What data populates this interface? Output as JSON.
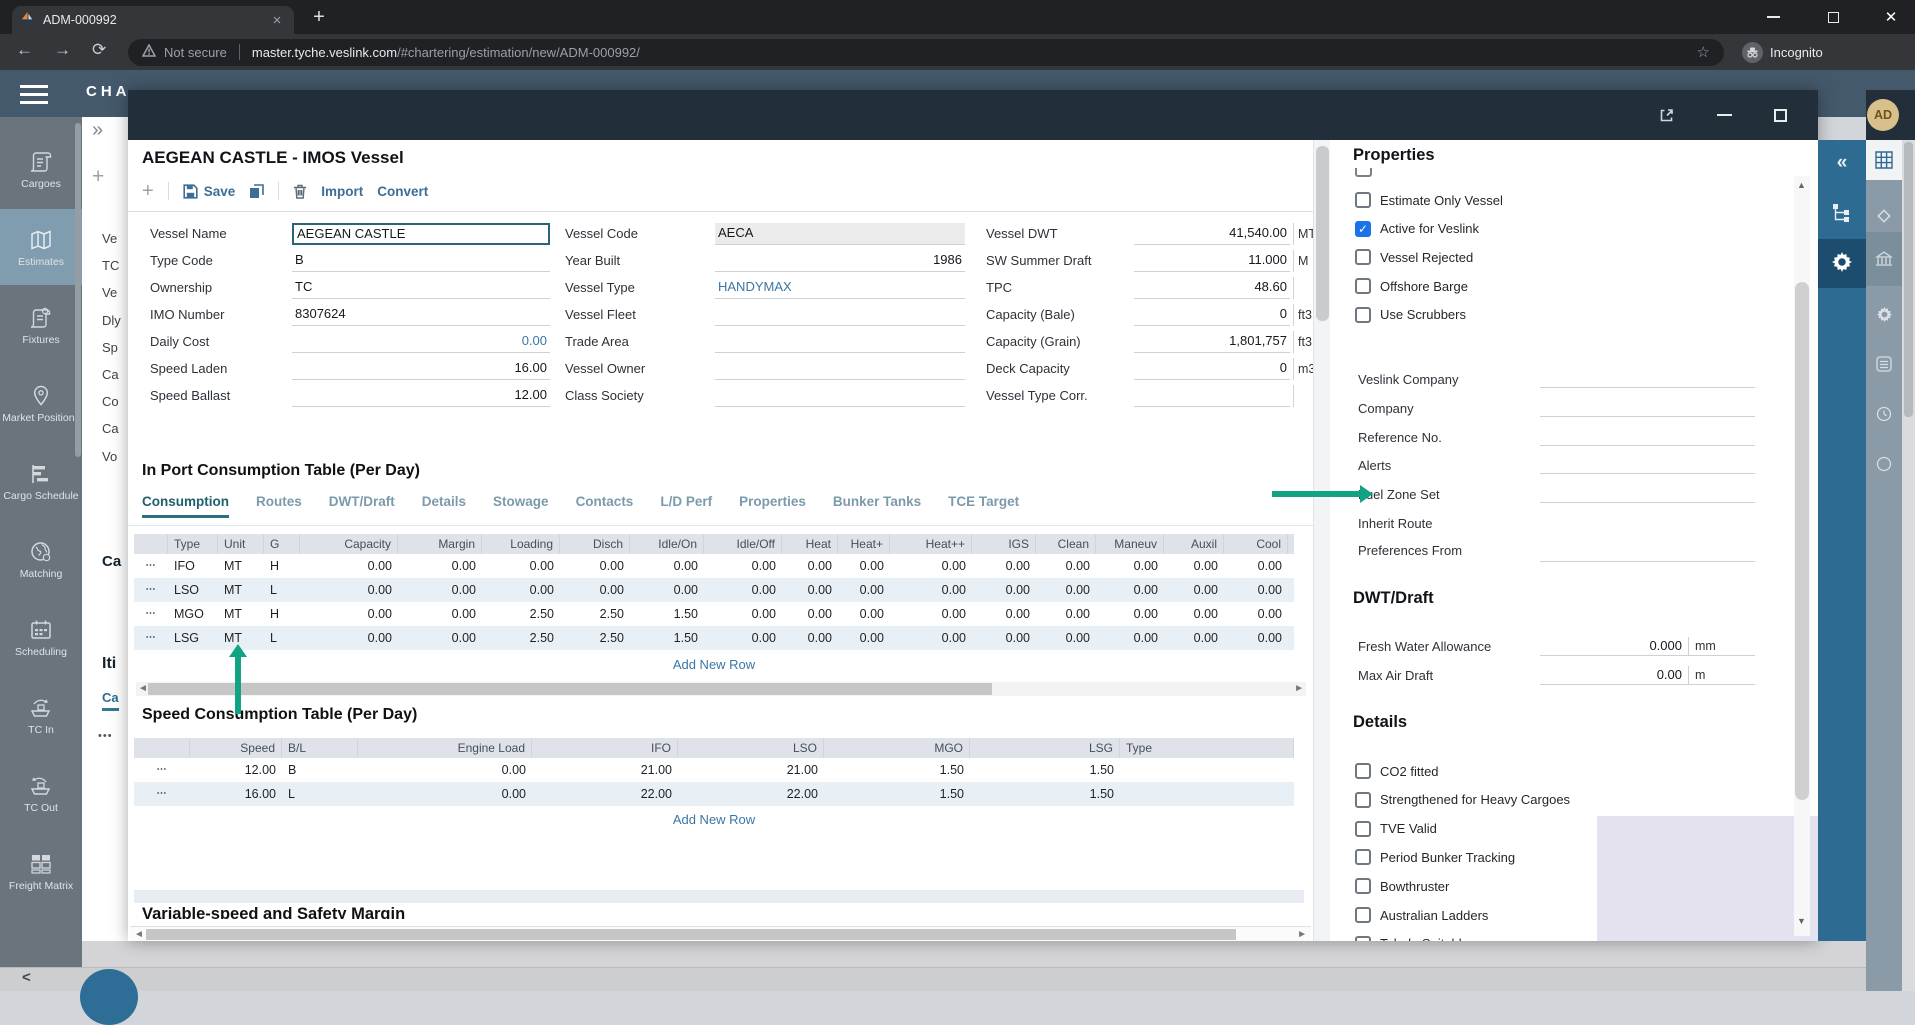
{
  "colors": {
    "accent_blue": "#2e6b93",
    "link_blue": "#3b76a4",
    "tab_active_teal": "#215f6f",
    "annotation_green": "#11a384",
    "checkbox_checked_blue": "#1a73e8",
    "modal_header": "#232e3b",
    "app_header": "#44596c",
    "sidebar_active": "#7f9dae"
  },
  "browser": {
    "tab_title": "ADM-000992",
    "not_secure": "Not secure",
    "url_host": "master.tyche.veslink.com",
    "url_path": "/#chartering/estimation/new/ADM-000992/",
    "incognito": "Incognito"
  },
  "app": {
    "header_title": "CHA",
    "avatar": "AD",
    "back_hint": "<"
  },
  "sidebar": {
    "items": [
      {
        "label": "Cargoes",
        "icon": "cargoes-scroll-icon",
        "active": false
      },
      {
        "label": "Estimates",
        "icon": "estimates-map-icon",
        "active": true
      },
      {
        "label": "Fixtures",
        "icon": "fixtures-scroll-icon",
        "active": false
      },
      {
        "label": "Market Positions",
        "icon": "market-pin-icon",
        "active": false
      },
      {
        "label": "Cargo Schedule",
        "icon": "cargo-schedule-gantt-icon",
        "active": false
      },
      {
        "label": "Matching",
        "icon": "matching-globe-icon",
        "active": false
      },
      {
        "label": "Scheduling",
        "icon": "scheduling-calendar-icon",
        "active": false
      },
      {
        "label": "TC In",
        "icon": "tc-in-ship-icon",
        "active": false
      },
      {
        "label": "TC Out",
        "icon": "tc-out-ship-icon",
        "active": false
      },
      {
        "label": "Freight Matrix",
        "icon": "freight-matrix-grid-icon",
        "active": false
      }
    ]
  },
  "background_page": {
    "clipped_labels": [
      "Ve",
      "TC",
      "Ve",
      "Dly",
      "Sp",
      "Ca",
      "Co",
      "Ca",
      "Vo"
    ],
    "heading_1": "Ca",
    "heading_2": "Iti",
    "heading_3": "Ca",
    "row_menu": "•••"
  },
  "modal": {
    "title": "AEGEAN CASTLE - IMOS Vessel",
    "toolbar": {
      "save": "Save",
      "import": "Import",
      "convert": "Convert"
    },
    "form": {
      "columns": [
        {
          "fields": [
            {
              "label": "Vessel Name",
              "value": "AEGEAN CASTLE",
              "kind": "boxed"
            },
            {
              "label": "Type Code",
              "value": "B"
            },
            {
              "label": "Ownership",
              "value": "TC"
            },
            {
              "label": "IMO Number",
              "value": "8307624"
            },
            {
              "label": "Daily Cost",
              "value": "0.00",
              "align": "right",
              "link": true
            },
            {
              "label": "Speed Laden",
              "value": "16.00",
              "align": "right"
            },
            {
              "label": "Speed Ballast",
              "value": "12.00",
              "align": "right"
            }
          ]
        },
        {
          "fields": [
            {
              "label": "Vessel Code",
              "value": "AECA",
              "kind": "readonly"
            },
            {
              "label": "Year Built",
              "value": "1986",
              "align": "right"
            },
            {
              "label": "Vessel Type",
              "value": "HANDYMAX",
              "link": true
            },
            {
              "label": "Vessel Fleet",
              "value": ""
            },
            {
              "label": "Trade Area",
              "value": ""
            },
            {
              "label": "Vessel Owner",
              "value": ""
            },
            {
              "label": "Class Society",
              "value": ""
            }
          ]
        },
        {
          "fields": [
            {
              "label": "Vessel DWT",
              "value": "41,540.00",
              "unit": "MT",
              "align": "right"
            },
            {
              "label": "SW Summer Draft",
              "value": "11.000",
              "unit": "M",
              "align": "right"
            },
            {
              "label": "TPC",
              "value": "48.60",
              "unit": "",
              "align": "right"
            },
            {
              "label": "Capacity (Bale)",
              "value": "0",
              "unit": "ft3",
              "align": "right"
            },
            {
              "label": "Capacity (Grain)",
              "value": "1,801,757",
              "unit": "ft3",
              "align": "right"
            },
            {
              "label": "Deck Capacity",
              "value": "0",
              "unit": "m3",
              "align": "right"
            },
            {
              "label": "Vessel Type Corr.",
              "value": "",
              "unit": "",
              "align": "right"
            }
          ]
        }
      ]
    },
    "inport": {
      "title": "In Port Consumption Table (Per Day)",
      "tabs": [
        {
          "label": "Consumption",
          "active": true
        },
        {
          "label": "Routes",
          "active": false
        },
        {
          "label": "DWT/Draft",
          "active": false
        },
        {
          "label": "Details",
          "active": false
        },
        {
          "label": "Stowage",
          "active": false
        },
        {
          "label": "Contacts",
          "active": false
        },
        {
          "label": "L/D Perf",
          "active": false
        },
        {
          "label": "Properties",
          "active": false
        },
        {
          "label": "Bunker Tanks",
          "active": false
        },
        {
          "label": "TCE Target",
          "active": false
        }
      ],
      "headers": [
        "Type",
        "Unit",
        "G",
        "Capacity",
        "Margin",
        "Loading",
        "Disch",
        "Idle/On",
        "Idle/Off",
        "Heat",
        "Heat+",
        "Heat++",
        "IGS",
        "Clean",
        "Maneuv",
        "Auxil",
        "Cool"
      ],
      "rows": [
        {
          "type": "IFO",
          "unit": "MT",
          "g": "H",
          "values": [
            "0.00",
            "0.00",
            "0.00",
            "0.00",
            "0.00",
            "0.00",
            "0.00",
            "0.00",
            "0.00",
            "0.00",
            "0.00",
            "0.00",
            "0.00",
            "0.00"
          ]
        },
        {
          "type": "LSO",
          "unit": "MT",
          "g": "L",
          "values": [
            "0.00",
            "0.00",
            "0.00",
            "0.00",
            "0.00",
            "0.00",
            "0.00",
            "0.00",
            "0.00",
            "0.00",
            "0.00",
            "0.00",
            "0.00",
            "0.00"
          ]
        },
        {
          "type": "MGO",
          "unit": "MT",
          "g": "H",
          "values": [
            "0.00",
            "0.00",
            "2.50",
            "2.50",
            "1.50",
            "0.00",
            "0.00",
            "0.00",
            "0.00",
            "0.00",
            "0.00",
            "0.00",
            "0.00",
            "0.00"
          ]
        },
        {
          "type": "LSG",
          "unit": "MT",
          "g": "L",
          "values": [
            "0.00",
            "0.00",
            "2.50",
            "2.50",
            "1.50",
            "0.00",
            "0.00",
            "0.00",
            "0.00",
            "0.00",
            "0.00",
            "0.00",
            "0.00",
            "0.00"
          ]
        }
      ],
      "add_row": "Add New Row"
    },
    "speed": {
      "title": "Speed Consumption Table (Per Day)",
      "headers": [
        "Speed",
        "B/L",
        "Engine Load",
        "IFO",
        "LSO",
        "MGO",
        "LSG",
        "Type"
      ],
      "rows": [
        {
          "speed": "12.00",
          "bl": "B",
          "engine_load": "0.00",
          "ifo": "21.00",
          "lso": "21.00",
          "mgo": "1.50",
          "lsg": "1.50",
          "type": ""
        },
        {
          "speed": "16.00",
          "bl": "L",
          "engine_load": "0.00",
          "ifo": "22.00",
          "lso": "22.00",
          "mgo": "1.50",
          "lsg": "1.50",
          "type": ""
        }
      ],
      "add_row": "Add New Row"
    },
    "bottom_heading": "Variable-speed and Safety Margin"
  },
  "properties": {
    "title": "Properties",
    "checkboxes": [
      {
        "label": "Estimate Only Vessel",
        "checked": false
      },
      {
        "label": "Active for Veslink",
        "checked": true
      },
      {
        "label": "Vessel Rejected",
        "checked": false
      },
      {
        "label": "Offshore Barge",
        "checked": false
      },
      {
        "label": "Use Scrubbers",
        "checked": false
      }
    ],
    "fields": [
      "Veslink Company",
      "Company",
      "Reference No.",
      "Alerts",
      "Fuel Zone Set"
    ],
    "inherit_field": {
      "label_line1": "Inherit Route",
      "label_line2": "Preferences From"
    },
    "dwt": {
      "title": "DWT/Draft",
      "fields": [
        {
          "label": "Fresh Water Allowance",
          "value": "0.000",
          "unit": "mm"
        },
        {
          "label": "Max Air Draft",
          "value": "0.00",
          "unit": "m"
        }
      ]
    },
    "details": {
      "title": "Details",
      "checkboxes": [
        {
          "label": "CO2 fitted",
          "checked": false
        },
        {
          "label": "Strengthened for Heavy Cargoes",
          "checked": false
        },
        {
          "label": "TVE Valid",
          "checked": false
        },
        {
          "label": "Period Bunker Tracking",
          "checked": false
        },
        {
          "label": "Bowthruster",
          "checked": false
        },
        {
          "label": "Australian Ladders",
          "checked": false
        },
        {
          "label": "Toledo Suitable",
          "checked": false
        }
      ]
    }
  }
}
